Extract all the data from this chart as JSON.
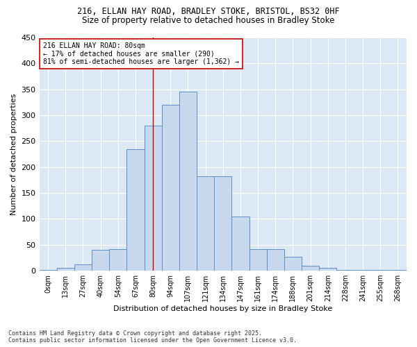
{
  "title_line1": "216, ELLAN HAY ROAD, BRADLEY STOKE, BRISTOL, BS32 0HF",
  "title_line2": "Size of property relative to detached houses in Bradley Stoke",
  "xlabel": "Distribution of detached houses by size in Bradley Stoke",
  "ylabel": "Number of detached properties",
  "bar_color": "#c9d9ed",
  "bar_edge_color": "#5b8fc9",
  "bg_color": "#dce9f5",
  "annotation_line1": "216 ELLAN HAY ROAD: 80sqm",
  "annotation_line2": "← 17% of detached houses are smaller (290)",
  "annotation_line3": "81% of semi-detached houses are larger (1,362) →",
  "vline_color": "#cc0000",
  "annotation_box_color": "#ffffff",
  "annotation_box_edge": "#cc0000",
  "categories": [
    "0sqm",
    "13sqm",
    "27sqm",
    "40sqm",
    "54sqm",
    "67sqm",
    "80sqm",
    "94sqm",
    "107sqm",
    "121sqm",
    "134sqm",
    "147sqm",
    "161sqm",
    "174sqm",
    "188sqm",
    "201sqm",
    "214sqm",
    "228sqm",
    "241sqm",
    "255sqm",
    "268sqm"
  ],
  "values": [
    2,
    5,
    12,
    40,
    42,
    235,
    280,
    320,
    345,
    182,
    182,
    105,
    42,
    42,
    27,
    10,
    5,
    2,
    1,
    1,
    1
  ],
  "ylim": [
    0,
    450
  ],
  "yticks": [
    0,
    50,
    100,
    150,
    200,
    250,
    300,
    350,
    400,
    450
  ],
  "footnote1": "Contains HM Land Registry data © Crown copyright and database right 2025.",
  "footnote2": "Contains public sector information licensed under the Open Government Licence v3.0."
}
